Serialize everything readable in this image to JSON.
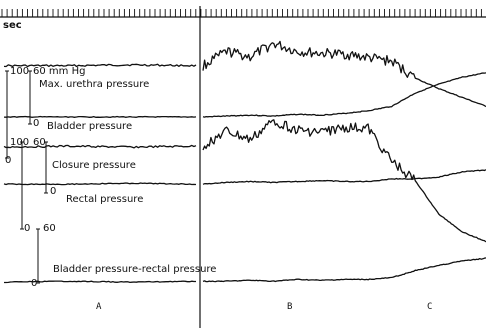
{
  "figure": {
    "time_unit": "sec",
    "scales": {
      "upper_left": "100",
      "upper_right": "60 mm Hg",
      "upper_zero": "0",
      "middle_left": "100",
      "middle_right": "60",
      "middle_zero_left": "0",
      "middle_zero_right": "0",
      "lower_left_zero": "0",
      "lower_right": "60",
      "lower_zero": "0"
    },
    "panels": [
      "A",
      "B",
      "C"
    ]
  },
  "chart_data": {
    "type": "line",
    "title": "",
    "xlabel": "",
    "ylabel": "",
    "phases": [
      "A",
      "B",
      "C"
    ],
    "series": [
      {
        "name": "Max. urethra pressure",
        "unit": "mm Hg",
        "shape": "steady in A; irregular spikes in B; falls as C begins",
        "values": [
          66,
          66,
          67,
          66,
          82,
          76,
          91,
          82,
          80,
          79,
          75,
          71,
          52,
          40,
          30,
          20
        ]
      },
      {
        "name": "Bladder pressure",
        "unit": "mm Hg",
        "shape": "low and flat in A and B; rises in C",
        "values": [
          8,
          8,
          8,
          8,
          9,
          10,
          9,
          11,
          10,
          12,
          15,
          20,
          35,
          45,
          53,
          58
        ]
      },
      {
        "name": "Closure pressure",
        "unit": "mm Hg",
        "shape": "steady in A; spiky in B; drops below zero in C",
        "values": [
          52,
          53,
          52,
          53,
          70,
          60,
          82,
          71,
          69,
          74,
          73,
          36,
          14,
          -24,
          -44,
          -55
        ]
      },
      {
        "name": "Rectal pressure",
        "unit": "mm Hg",
        "shape": "flat in A; slight undulation in B; rises with straining in C",
        "values": [
          10,
          10,
          11,
          10,
          12,
          13,
          12,
          13,
          14,
          13,
          13,
          16,
          16,
          18,
          24,
          26
        ]
      },
      {
        "name": "Bladder pressure-rectal pressure",
        "unit": "mm Hg",
        "shape": "near zero in A and B; rises in C",
        "values": [
          1,
          2,
          1,
          2,
          2,
          3,
          2,
          4,
          3,
          4,
          4,
          6,
          14,
          20,
          25,
          28
        ]
      }
    ]
  },
  "style": {
    "ink": "#111111",
    "paper": "#ffffff"
  }
}
